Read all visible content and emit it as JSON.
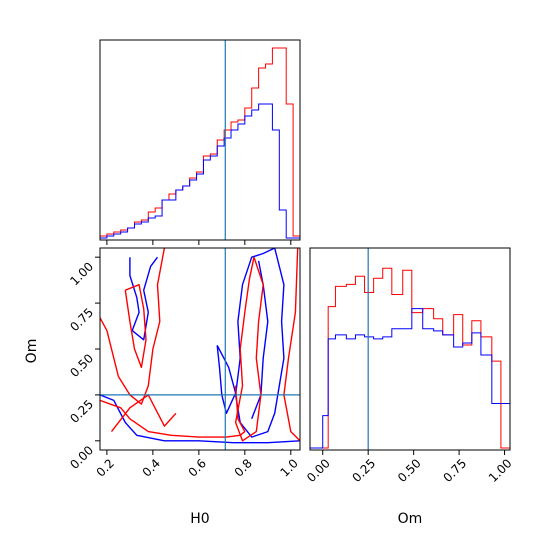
{
  "chart_data": {
    "type": "corner",
    "parameters": [
      "H0",
      "Om"
    ],
    "truths": {
      "H0": 0.715,
      "Om": 0.25
    },
    "colors": {
      "series_a": "#ff0000",
      "series_b": "#0000ff",
      "truth": "#1f77b4",
      "frame": "#000000"
    },
    "grid": false,
    "panels": [
      {
        "id": "hist-H0",
        "type": "histogram",
        "xlim": [
          0.17,
          1.04
        ],
        "xticks": [
          0.2,
          0.4,
          0.6,
          0.8,
          1.0
        ],
        "xtick_labels_shown": false,
        "ylim": [
          0,
          100
        ],
        "bin_edges": [
          0.17,
          0.2,
          0.23,
          0.26,
          0.29,
          0.32,
          0.35,
          0.38,
          0.41,
          0.44,
          0.47,
          0.5,
          0.53,
          0.56,
          0.59,
          0.62,
          0.65,
          0.68,
          0.71,
          0.74,
          0.77,
          0.8,
          0.83,
          0.86,
          0.89,
          0.92,
          0.95,
          0.98,
          1.01,
          1.04
        ],
        "series": [
          {
            "color": "red",
            "counts": [
              2,
              3,
              4,
              5,
              6,
              9,
              10,
              14,
              16,
              20,
              23,
              25,
              27,
              31,
              34,
              42,
              43,
              50,
              55,
              59,
              60,
              66,
              76,
              86,
              88,
              96,
              96,
              68,
              2
            ]
          },
          {
            "color": "blue",
            "counts": [
              1,
              2,
              3,
              4,
              6,
              8,
              9,
              11,
              12,
              20,
              20,
              25,
              27,
              30,
              33,
              40,
              42,
              47,
              51,
              55,
              58,
              62,
              65,
              68,
              68,
              55,
              15,
              1,
              1
            ]
          }
        ]
      },
      {
        "id": "hist-Om",
        "type": "histogram",
        "xlim": [
          -0.07,
          1.03
        ],
        "xticks": [
          0.0,
          0.25,
          0.5,
          0.75,
          1.0
        ],
        "xtick_labels": [
          "0.00",
          "0.25",
          "0.50",
          "0.75",
          "1.00"
        ],
        "xlabel": "Om",
        "ylim": [
          0,
          100
        ],
        "bin_edges": [
          -0.07,
          0.0,
          0.03,
          0.07,
          0.13,
          0.18,
          0.23,
          0.28,
          0.33,
          0.38,
          0.44,
          0.49,
          0.55,
          0.61,
          0.66,
          0.72,
          0.77,
          0.82,
          0.87,
          0.93,
          0.98,
          1.03
        ],
        "series": [
          {
            "color": "red",
            "counts": [
              1,
              1,
              71,
              81,
              82,
              86,
              78,
              85,
              90,
              77,
              89,
              68,
              70,
              65,
              57,
              67,
              52,
              64,
              56,
              44,
              1
            ]
          },
          {
            "color": "blue",
            "counts": [
              1,
              17,
              55,
              57,
              55,
              57,
              56,
              55,
              56,
              60,
              60,
              70,
              60,
              59,
              57,
              51,
              53,
              58,
              47,
              23,
              23
            ]
          }
        ]
      },
      {
        "id": "contour-H0-Om",
        "type": "contour",
        "xlim": [
          0.17,
          1.04
        ],
        "ylim": [
          -0.05,
          1.05
        ],
        "xticks": [
          0.2,
          0.4,
          0.6,
          0.8,
          1.0
        ],
        "xtick_labels": [
          "0.2",
          "0.4",
          "0.6",
          "0.8",
          "1.0"
        ],
        "yticks": [
          0.0,
          0.25,
          0.5,
          0.75,
          1.0
        ],
        "ytick_labels": [
          "0.00",
          "0.25",
          "0.50",
          "0.75",
          "1.00"
        ],
        "xlabel": "H0",
        "ylabel": "Om",
        "contours": [
          {
            "color": "blue",
            "level": "outer",
            "points": [
              [
                0.17,
                0.25
              ],
              [
                0.23,
                0.22
              ],
              [
                0.28,
                0.1
              ],
              [
                0.33,
                0.03
              ],
              [
                0.45,
                0.0
              ],
              [
                0.6,
                0.0
              ],
              [
                0.75,
                -0.01
              ],
              [
                0.9,
                -0.01
              ],
              [
                1.04,
                0.0
              ]
            ]
          },
          {
            "color": "blue",
            "level": "outer",
            "points": [
              [
                0.93,
                1.05
              ],
              [
                0.97,
                0.85
              ],
              [
                0.96,
                0.65
              ],
              [
                0.97,
                0.45
              ],
              [
                0.95,
                0.3
              ],
              [
                0.93,
                0.15
              ],
              [
                0.9,
                0.05
              ],
              [
                0.83,
                0.02
              ],
              [
                0.78,
                0.1
              ],
              [
                0.76,
                0.25
              ],
              [
                0.78,
                0.45
              ],
              [
                0.77,
                0.65
              ],
              [
                0.79,
                0.85
              ],
              [
                0.83,
                1.0
              ],
              [
                0.88,
                1.02
              ],
              [
                0.93,
                1.05
              ]
            ]
          },
          {
            "color": "blue",
            "level": "inner",
            "points": [
              [
                0.83,
                0.12
              ],
              [
                0.87,
                0.25
              ],
              [
                0.88,
                0.45
              ],
              [
                0.9,
                0.65
              ],
              [
                0.88,
                0.85
              ],
              [
                0.86,
                0.98
              ]
            ]
          },
          {
            "color": "blue",
            "level": "inner",
            "points": [
              [
                0.3,
                1.0
              ],
              [
                0.3,
                0.9
              ],
              [
                0.33,
                0.78
              ],
              [
                0.34,
                0.7
              ],
              [
                0.31,
                0.6
              ],
              [
                0.36,
                0.55
              ],
              [
                0.38,
                0.7
              ],
              [
                0.36,
                0.82
              ],
              [
                0.39,
                0.95
              ],
              [
                0.42,
                1.0
              ]
            ]
          },
          {
            "color": "blue",
            "level": "inner",
            "points": [
              [
                0.68,
                0.52
              ],
              [
                0.73,
                0.4
              ],
              [
                0.76,
                0.26
              ],
              [
                0.72,
                0.15
              ],
              [
                0.7,
                0.25
              ],
              [
                0.69,
                0.4
              ],
              [
                0.68,
                0.52
              ]
            ]
          },
          {
            "color": "red",
            "level": "outer",
            "points": [
              [
                0.17,
                0.22
              ],
              [
                0.26,
                0.18
              ],
              [
                0.3,
                0.12
              ],
              [
                0.38,
                0.05
              ],
              [
                0.48,
                0.03
              ],
              [
                0.6,
                0.02
              ],
              [
                0.72,
                0.02
              ],
              [
                0.78,
                0.03
              ],
              [
                0.8,
                0.05
              ],
              [
                0.77,
                0.12
              ],
              [
                0.76,
                0.3
              ]
            ]
          },
          {
            "color": "red",
            "level": "outer",
            "points": [
              [
                0.17,
                0.67
              ],
              [
                0.2,
                0.6
              ],
              [
                0.23,
                0.45
              ],
              [
                0.25,
                0.35
              ],
              [
                0.3,
                0.25
              ],
              [
                0.35,
                0.2
              ],
              [
                0.38,
                0.3
              ],
              [
                0.4,
                0.5
              ],
              [
                0.43,
                0.65
              ],
              [
                0.42,
                0.85
              ],
              [
                0.45,
                1.05
              ]
            ]
          },
          {
            "color": "red",
            "level": "inner",
            "points": [
              [
                0.28,
                0.82
              ],
              [
                0.3,
                0.65
              ],
              [
                0.32,
                0.5
              ],
              [
                0.35,
                0.4
              ],
              [
                0.37,
                0.55
              ],
              [
                0.36,
                0.72
              ],
              [
                0.34,
                0.85
              ],
              [
                0.28,
                0.82
              ]
            ]
          },
          {
            "color": "red",
            "level": "outer",
            "points": [
              [
                1.04,
                0.0
              ],
              [
                1.0,
                0.05
              ],
              [
                0.97,
                0.25
              ],
              [
                0.99,
                0.45
              ],
              [
                1.02,
                0.7
              ],
              [
                1.03,
                1.05
              ]
            ]
          },
          {
            "color": "red",
            "level": "inner",
            "points": [
              [
                0.84,
                1.0
              ],
              [
                0.88,
                0.85
              ],
              [
                0.86,
                0.65
              ],
              [
                0.85,
                0.45
              ],
              [
                0.87,
                0.25
              ],
              [
                0.85,
                0.05
              ],
              [
                0.79,
                0.0
              ],
              [
                0.76,
                0.1
              ],
              [
                0.79,
                0.3
              ],
              [
                0.78,
                0.5
              ],
              [
                0.8,
                0.7
              ],
              [
                0.82,
                0.88
              ],
              [
                0.84,
                1.0
              ]
            ]
          },
          {
            "color": "red",
            "level": "inner",
            "points": [
              [
                0.22,
                0.05
              ],
              [
                0.3,
                0.18
              ],
              [
                0.38,
                0.25
              ],
              [
                0.45,
                0.08
              ],
              [
                0.5,
                0.15
              ]
            ]
          }
        ]
      }
    ]
  }
}
